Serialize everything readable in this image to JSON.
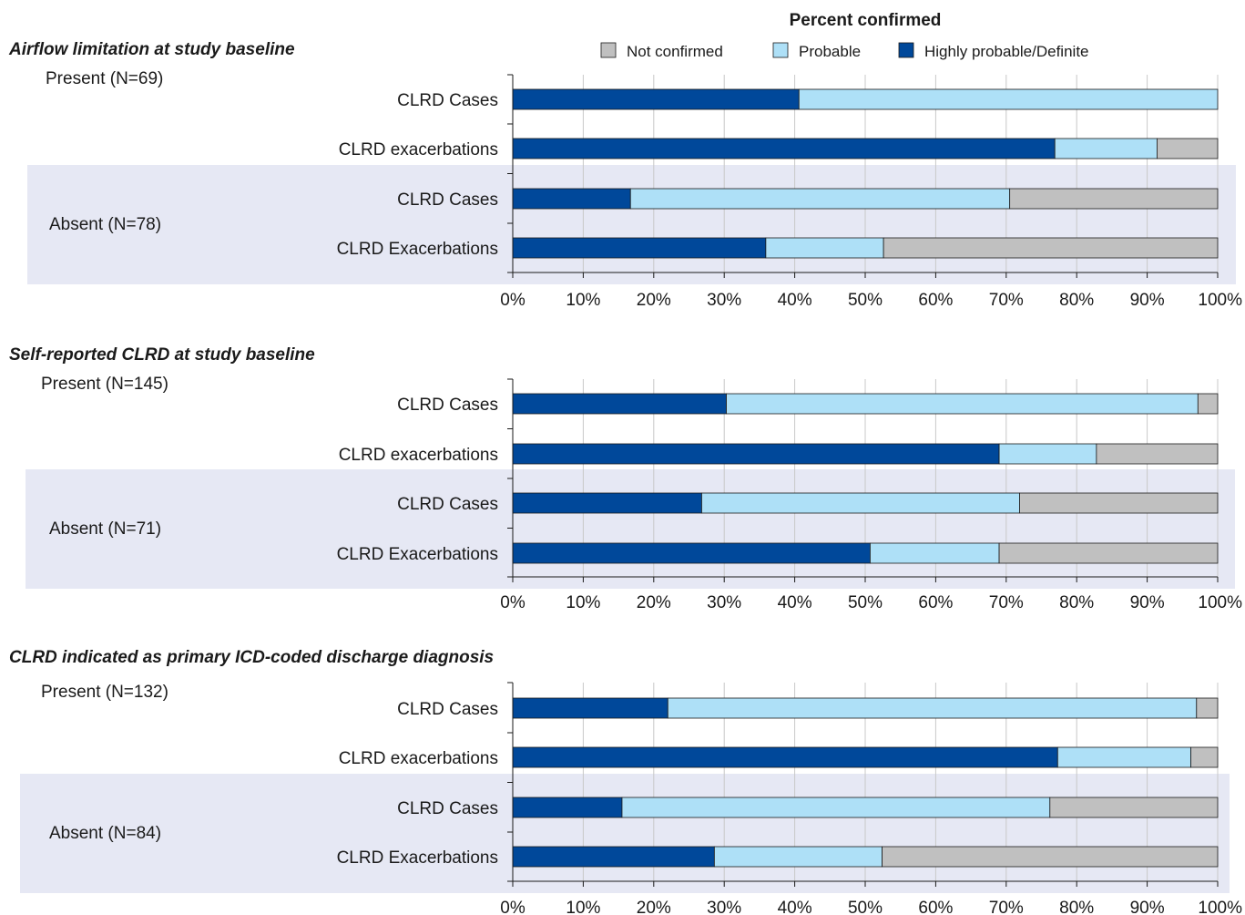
{
  "legend": {
    "title": "Percent confirmed",
    "items": [
      {
        "key": "not_confirmed",
        "label": "Not confirmed",
        "color": "#c0c0c0"
      },
      {
        "key": "probable",
        "label": "Probable",
        "color": "#aee0f7"
      },
      {
        "key": "highly",
        "label": "Highly probable/Definite",
        "color": "#00489a"
      }
    ]
  },
  "chart_data": [
    {
      "type": "bar",
      "orientation": "horizontal",
      "stacked": true,
      "title": "Airflow limitation at study baseline",
      "xlim": [
        0,
        100
      ],
      "x_ticks": [
        "0%",
        "10%",
        "20%",
        "30%",
        "40%",
        "50%",
        "60%",
        "70%",
        "80%",
        "90%",
        "100%"
      ],
      "grid": true,
      "groups": [
        {
          "label": "Present (N=69)",
          "shaded": false
        },
        {
          "label": "Absent (N=78)",
          "shaded": true
        }
      ],
      "categories": [
        "CLRD Cases",
        "CLRD exacerbations",
        "CLRD Cases",
        "CLRD Exacerbations"
      ],
      "series": [
        {
          "name": "Highly probable/Definite",
          "values": [
            40.6,
            76.9,
            16.7,
            35.9
          ]
        },
        {
          "name": "Probable",
          "values": [
            59.4,
            14.5,
            53.8,
            16.7
          ]
        },
        {
          "name": "Not confirmed",
          "values": [
            0.0,
            8.6,
            29.5,
            47.4
          ]
        }
      ]
    },
    {
      "type": "bar",
      "orientation": "horizontal",
      "stacked": true,
      "title": "Self-reported CLRD at study baseline",
      "xlim": [
        0,
        100
      ],
      "x_ticks": [
        "0%",
        "10%",
        "20%",
        "30%",
        "40%",
        "50%",
        "60%",
        "70%",
        "80%",
        "90%",
        "100%"
      ],
      "grid": true,
      "groups": [
        {
          "label": "Present (N=145)",
          "shaded": false
        },
        {
          "label": "Absent (N=71)",
          "shaded": true
        }
      ],
      "categories": [
        "CLRD Cases",
        "CLRD exacerbations",
        "CLRD Cases",
        "CLRD Exacerbations"
      ],
      "series": [
        {
          "name": "Highly probable/Definite",
          "values": [
            30.3,
            69.0,
            26.8,
            50.7
          ]
        },
        {
          "name": "Probable",
          "values": [
            66.9,
            13.8,
            45.1,
            18.3
          ]
        },
        {
          "name": "Not confirmed",
          "values": [
            2.8,
            17.2,
            28.1,
            31.0
          ]
        }
      ]
    },
    {
      "type": "bar",
      "orientation": "horizontal",
      "stacked": true,
      "title": "CLRD indicated as primary ICD-coded discharge diagnosis",
      "xlim": [
        0,
        100
      ],
      "x_ticks": [
        "0%",
        "10%",
        "20%",
        "30%",
        "40%",
        "50%",
        "60%",
        "70%",
        "80%",
        "90%",
        "100%"
      ],
      "grid": true,
      "groups": [
        {
          "label": "Present (N=132)",
          "shaded": false
        },
        {
          "label": "Absent (N=84)",
          "shaded": true
        }
      ],
      "categories": [
        "CLRD Cases",
        "CLRD exacerbations",
        "CLRD Cases",
        "CLRD Exacerbations"
      ],
      "series": [
        {
          "name": "Highly probable/Definite",
          "values": [
            22.0,
            77.3,
            15.5,
            28.6
          ]
        },
        {
          "name": "Probable",
          "values": [
            75.0,
            18.9,
            60.7,
            23.8
          ]
        },
        {
          "name": "Not confirmed",
          "values": [
            3.0,
            3.8,
            23.8,
            47.6
          ]
        }
      ]
    }
  ]
}
